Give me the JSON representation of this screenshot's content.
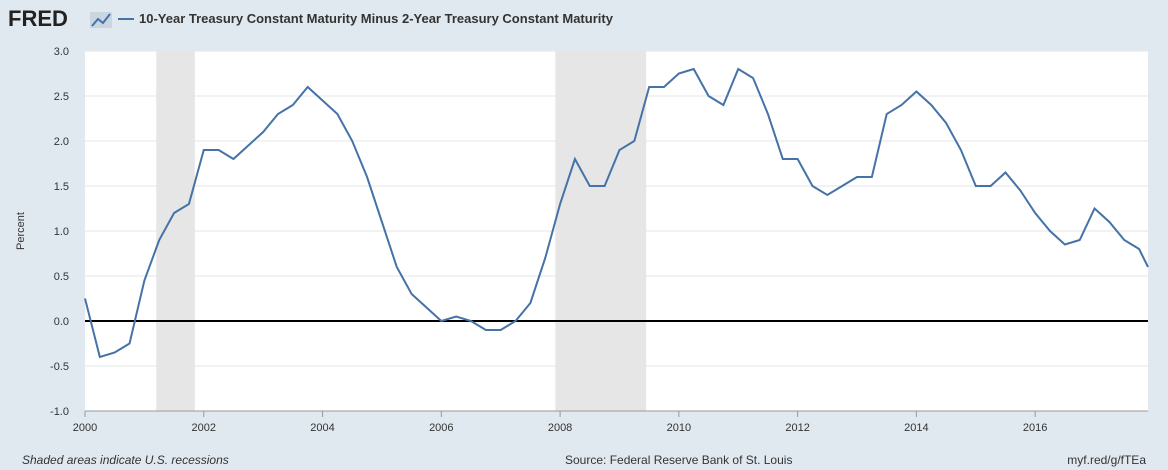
{
  "brand": "FRED",
  "chart_data": {
    "type": "line",
    "title": "10-Year Treasury Constant Maturity Minus 2-Year Treasury Constant Maturity",
    "y_label": "Percent",
    "footnote": "Shaded areas indicate U.S. recessions",
    "source": "Source: Federal Reserve Bank of St. Louis",
    "link": "myf.red/g/fTEa",
    "xlim": [
      2000,
      2017.9
    ],
    "xticks": [
      2000,
      2002,
      2004,
      2006,
      2008,
      2010,
      2012,
      2014,
      2016
    ],
    "ylim": [
      -1,
      3
    ],
    "yticks": [
      {
        "value": -1,
        "label": "-1.0"
      },
      {
        "value": -0.5,
        "label": "-0.5"
      },
      {
        "value": 0,
        "label": "0.0"
      },
      {
        "value": 0.5,
        "label": "0.5"
      },
      {
        "value": 1,
        "label": "1.0"
      },
      {
        "value": 1.5,
        "label": "1.5"
      },
      {
        "value": 2,
        "label": "2.0"
      },
      {
        "value": 2.5,
        "label": "2.5"
      },
      {
        "value": 3,
        "label": "3.0"
      }
    ],
    "grid": true,
    "recessions": [
      {
        "start": 2001.2,
        "end": 2001.85
      },
      {
        "start": 2007.92,
        "end": 2009.45
      }
    ],
    "recession_color": "#e6e6e6",
    "x": [
      2000,
      2000.25,
      2000.5,
      2000.75,
      2001,
      2001.25,
      2001.5,
      2001.75,
      2002,
      2002.25,
      2002.5,
      2002.75,
      2003,
      2003.25,
      2003.5,
      2003.75,
      2004,
      2004.25,
      2004.5,
      2004.75,
      2005,
      2005.25,
      2005.5,
      2005.75,
      2006,
      2006.25,
      2006.5,
      2006.75,
      2007,
      2007.25,
      2007.5,
      2007.75,
      2008,
      2008.25,
      2008.5,
      2008.75,
      2009,
      2009.25,
      2009.5,
      2009.75,
      2010,
      2010.25,
      2010.5,
      2010.75,
      2011,
      2011.25,
      2011.5,
      2011.75,
      2012,
      2012.25,
      2012.5,
      2012.75,
      2013,
      2013.25,
      2013.5,
      2013.75,
      2014,
      2014.25,
      2014.5,
      2014.75,
      2015,
      2015.25,
      2015.5,
      2015.75,
      2016,
      2016.25,
      2016.5,
      2016.75,
      2017,
      2017.25,
      2017.5,
      2017.75,
      2017.9
    ],
    "series": [
      {
        "name": "10-Year Treasury Constant Maturity Minus 2-Year Treasury Constant Maturity",
        "color": "#4572a7",
        "values": [
          0.25,
          -0.4,
          -0.35,
          -0.25,
          0.45,
          0.9,
          1.2,
          1.3,
          1.9,
          1.9,
          1.8,
          1.95,
          2.1,
          2.3,
          2.4,
          2.6,
          2.45,
          2.3,
          2.0,
          1.6,
          1.1,
          0.6,
          0.3,
          0.15,
          0.0,
          0.05,
          0.0,
          -0.1,
          -0.1,
          0.0,
          0.2,
          0.7,
          1.3,
          1.8,
          1.5,
          1.5,
          1.9,
          2.0,
          2.6,
          2.6,
          2.75,
          2.8,
          2.5,
          2.4,
          2.8,
          2.7,
          2.3,
          1.8,
          1.8,
          1.5,
          1.4,
          1.5,
          1.6,
          1.6,
          2.3,
          2.4,
          2.55,
          2.4,
          2.2,
          1.9,
          1.5,
          1.5,
          1.65,
          1.45,
          1.2,
          1.0,
          0.85,
          0.9,
          1.25,
          1.1,
          0.9,
          0.8,
          0.6
        ]
      }
    ]
  }
}
